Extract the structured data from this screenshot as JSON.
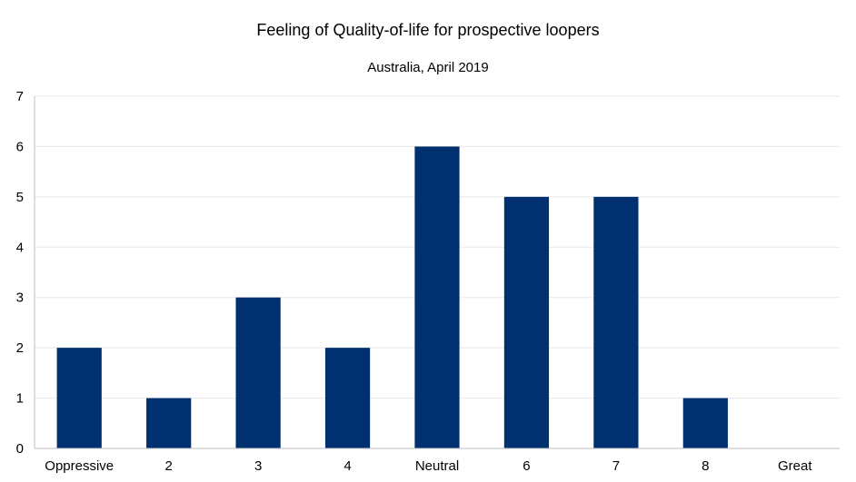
{
  "chart_data": {
    "type": "bar",
    "title": "Feeling of Quality-of-life for prospective loopers",
    "subtitle": "Australia, April 2019",
    "categories": [
      "Oppressive",
      "2",
      "3",
      "4",
      "Neutral",
      "6",
      "7",
      "8",
      "Great"
    ],
    "values": [
      2,
      1,
      3,
      2,
      6,
      5,
      5,
      1,
      0
    ],
    "ylim": [
      0,
      7
    ],
    "yticks": [
      0,
      1,
      2,
      3,
      4,
      5,
      6,
      7
    ],
    "grid": true,
    "legend": "none",
    "colors": {
      "bar": "#003070",
      "grid": "#e8e8e8",
      "axis": "#bfbfbf"
    }
  }
}
